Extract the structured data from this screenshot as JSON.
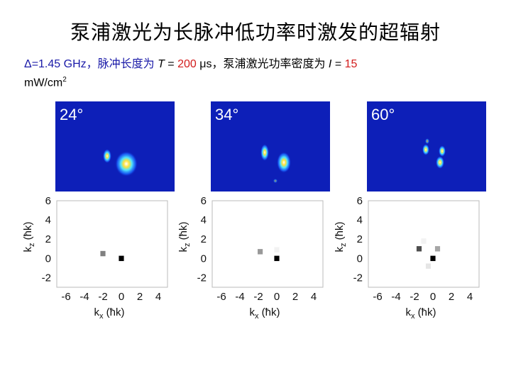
{
  "title": "泵浦激光为长脉冲低功率时激发的超辐射",
  "params": {
    "delta": "Δ=1.45 GHz，脉冲长度为 ",
    "T_sym": "T",
    "eq1": " = ",
    "T_val": "200",
    "T_unit": " μs，泵浦激光功率密度为 ",
    "I_sym": "I",
    "eq2": " = ",
    "I_val": "15",
    "I_unit_main": "mW/cm",
    "I_unit_sup": "2"
  },
  "panels": [
    {
      "angle": "24°"
    },
    {
      "angle": "34°"
    },
    {
      "angle": "60°"
    }
  ],
  "axes": {
    "xlabel_main": "k",
    "xlabel_sub": "x",
    "xlabel_unit": " (ħk)",
    "ylabel_main": "k",
    "ylabel_sub": "z",
    "ylabel_unit": " (ħk)",
    "xticks": [
      "-6",
      "-4",
      "-2",
      "0",
      "2",
      "4"
    ],
    "yticks": [
      "6",
      "4",
      "2",
      "0",
      "-2"
    ]
  },
  "chart_data": [
    {
      "type": "heatmap",
      "label": "24°",
      "xlim": [
        -7,
        5
      ],
      "ylim": [
        -3,
        6
      ],
      "points": [
        {
          "x": 0,
          "y": 0,
          "intensity": 1.0
        },
        {
          "x": -2,
          "y": 0.5,
          "intensity": 0.5
        }
      ]
    },
    {
      "type": "heatmap",
      "label": "34°",
      "xlim": [
        -7,
        5
      ],
      "ylim": [
        -3,
        6
      ],
      "points": [
        {
          "x": 0,
          "y": 0,
          "intensity": 1.0
        },
        {
          "x": -1.8,
          "y": 0.7,
          "intensity": 0.4
        },
        {
          "x": 0,
          "y": 0.9,
          "intensity": 0.05
        }
      ]
    },
    {
      "type": "heatmap",
      "label": "60°",
      "xlim": [
        -7,
        5
      ],
      "ylim": [
        -3,
        6
      ],
      "points": [
        {
          "x": 0,
          "y": 0,
          "intensity": 1.0
        },
        {
          "x": -1.5,
          "y": 1,
          "intensity": 0.7
        },
        {
          "x": 0.5,
          "y": 1,
          "intensity": 0.35
        },
        {
          "x": -0.5,
          "y": -0.8,
          "intensity": 0.1
        },
        {
          "x": -1,
          "y": 1.8,
          "intensity": 0.05
        }
      ]
    }
  ]
}
